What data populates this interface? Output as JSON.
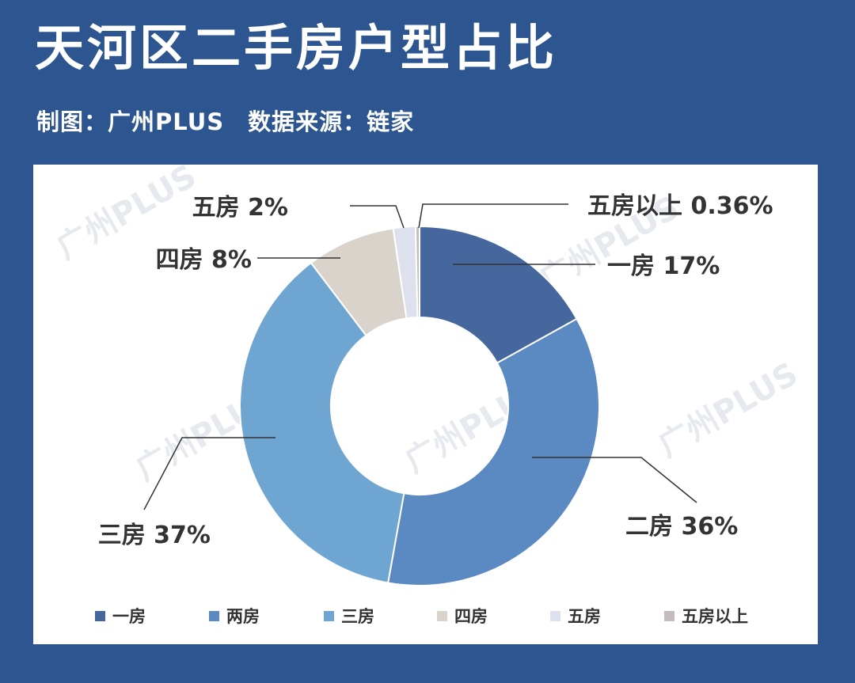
{
  "header": {
    "title": "天河区二手房户型占比",
    "subtitle": "制图：广州PLUS　数据来源：链家"
  },
  "watermark": "广州PLUS",
  "chart_data": {
    "type": "pie",
    "donut": true,
    "slices": [
      {
        "label": "一房",
        "callout": "一房  17%",
        "value": 17,
        "color": "#46679e"
      },
      {
        "label": "两房",
        "callout": "二房  36%",
        "value": 36,
        "color": "#5b89c2"
      },
      {
        "label": "三房",
        "callout": "三房  37%",
        "value": 37,
        "color": "#6fa5d1"
      },
      {
        "label": "四房",
        "callout": "四房  8%",
        "value": 8,
        "color": "#d9d3cb"
      },
      {
        "label": "五房",
        "callout": "五房  2%",
        "value": 2,
        "color": "#dde1ee"
      },
      {
        "label": "五房以上",
        "callout": "五房以上  0.36%",
        "value": 0.36,
        "color": "#c5bcbf"
      }
    ],
    "legend_position": "bottom"
  }
}
